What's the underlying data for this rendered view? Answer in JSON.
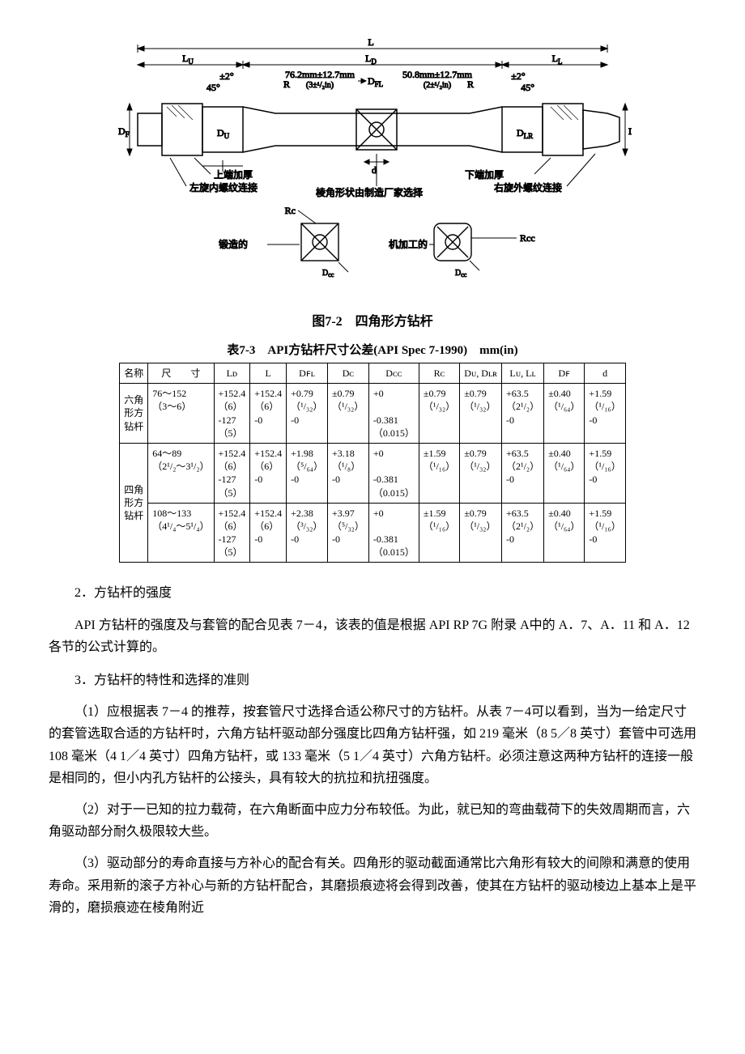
{
  "figure": {
    "caption": "图7-2　四角形方钻杆",
    "labels": {
      "L": "L",
      "LU": "L",
      "LD": "L",
      "LL": "L",
      "DF": "D",
      "DU": "D",
      "DFL": "D",
      "d": "d",
      "DCC": "D",
      "DLR": "D",
      "DFR": "D",
      "taper": "±2°",
      "ang45": "45°",
      "R_left": "R",
      "R_right": "R",
      "dim1": "76.2mm±12.7mm",
      "dim1b": "(3±¹/₂in)",
      "dim2": "50.8mm±12.7mm",
      "dim2b": "(2±¹/₂in)",
      "upThick": "上端加厚",
      "leftThread": "左旋内螺纹连接",
      "downThick": "下端加厚",
      "rightThread": "右旋外螺纹连接",
      "edgeNote": "棱角形状由制造厂家选择",
      "RcL": "Rc",
      "forged": "锻造的",
      "RccR": "Rcc",
      "machined": "机加工的",
      "Dcc_small": "D"
    }
  },
  "tableCaption": "表7-3　API方钻杆尺寸公差(API Spec 7-1990)　mm(in)",
  "headers": [
    "名称",
    "尺　　寸",
    "Lᴅ",
    "L",
    "Dꜰʟ",
    "Dᴄ",
    "Dᴄᴄ",
    "Rᴄ",
    "Dᴜ, Dʟʀ",
    "Lᴜ,  Lʟ",
    "Dꜰ",
    "d"
  ],
  "rows": [
    {
      "name": "六角\n形方\n钻杆",
      "size": "76～152\n（3～6）",
      "LD": "+152.4\n（6）\n-127\n（5）",
      "L": "+152.4\n（6）\n-0",
      "DFL": "+0.79\n（¹/₃₂）\n-0",
      "DC": "±0.79\n（¹/₃₂）",
      "DCC": "+0\n\n-0.381\n（0.015）",
      "RC": "±0.79\n（¹/₃₂）",
      "DU": "±0.79\n（¹/₃₂）",
      "LU": "+63.5\n（2¹/₂）\n-0",
      "DF": "±0.40\n（¹/₆₄）",
      "d": "+1.59\n（¹/₁₆）\n-0"
    },
    {
      "name": "",
      "size": "64～89\n（2¹/₂～3¹/₂）",
      "LD": "+152.4\n（6）\n-127\n（5）",
      "L": "+152.4\n（6）\n-0",
      "DFL": "+1.98\n（⁵/₆₄）\n-0",
      "DC": "+3.18\n（¹/₈）\n-0",
      "DCC": "+0\n\n-0.381\n（0.015）",
      "RC": "±1.59\n（¹/₁₆）",
      "DU": "±0.79\n（¹/₃₂）",
      "LU": "+63.5\n（2¹/₂）\n-0",
      "DF": "±0.40\n（¹/₆₄）",
      "d": "+1.59\n（¹/₁₆）\n-0"
    },
    {
      "name": "四角\n形方\n钻杆",
      "size": "108～133\n（4¹/₄～5¹/₄）",
      "LD": "+152.4\n（6）\n-127\n（5）",
      "L": "+152.4\n（6）\n-0",
      "DFL": "+2.38\n（³/₃₂）\n-0",
      "DC": "+3.97\n（⁵/₃₂）\n-0",
      "DCC": "+0\n\n-0.381\n（0.015）",
      "RC": "±1.59\n（¹/₁₆）",
      "DU": "±0.79\n（¹/₃₂）",
      "LU": "+63.5\n（2¹/₂）\n-0",
      "DF": "±0.40\n（¹/₆₄）",
      "d": "+1.59\n（¹/₁₆）\n-0"
    }
  ],
  "paras": {
    "s2": "2．方钻杆的强度",
    "p2": "API 方钻杆的强度及与套管的配合见表 7－4，该表的值是根据 API RP 7G 附录 A中的 A．7、A．11 和 A．12 各节的公式计算的。",
    "s3": "3．方钻杆的特性和选择的准则",
    "p31": "（1）应根据表 7－4 的推荐，按套管尺寸选择合适公称尺寸的方钻杆。从表 7－4可以看到，当为一给定尺寸的套管选取合适的方钻杆时，六角方钻杆驱动部分强度比四角方钻杆强，如 219 毫米（8 5／8 英寸）套管中可选用 108 毫米（4 1／4 英寸）四角方钻杆，或 133 毫米（5 1／4 英寸）六角方钻杆。必须注意这两种方钻杆的连接一般是相同的，但小内孔方钻杆的公接头，具有较大的抗拉和抗扭强度。",
    "p32": "（2）对于一已知的拉力载荷，在六角断面中应力分布较低。为此，就已知的弯曲载荷下的失效周期而言，六角驱动部分耐久极限较大些。",
    "p33": "（3）驱动部分的寿命直接与方补心的配合有关。四角形的驱动截面通常比六角形有较大的间隙和满意的使用寿命。采用新的滚子方补心与新的方钻杆配合，其磨损痕迹将会得到改善，使其在方钻杆的驱动棱边上基本上是平滑的，磨损痕迹在棱角附近"
  },
  "style": {
    "inkColor": "#000000",
    "tableFontSize": 12,
    "bodyFontSize": 16
  }
}
